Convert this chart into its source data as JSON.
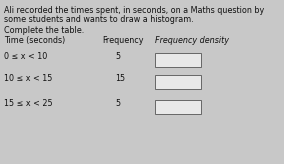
{
  "title_line1": "Ali recorded the times spent, in seconds, on a Maths question by",
  "title_line2": "some students and wants to draw a histogram.",
  "instruction": "Complete the table.",
  "col1_header": "Time (seconds)",
  "col2_header": "Frequency",
  "col3_header": "Frequency density",
  "rows": [
    {
      "time": "0 ≤ x < 10",
      "freq": "5",
      "fd_box": true
    },
    {
      "time": "10 ≤ x < 15",
      "freq": "15",
      "fd_box": true
    },
    {
      "time": "15 ≤ x < 25",
      "freq": "5",
      "fd_box": true
    }
  ],
  "bg_color": "#c8c8c8",
  "text_color": "#111111",
  "box_color": "#e8e8e8",
  "box_edge_color": "#666666",
  "title_fontsize": 5.8,
  "header_fontsize": 5.8,
  "row_fontsize": 5.8,
  "instruction_fontsize": 5.8
}
